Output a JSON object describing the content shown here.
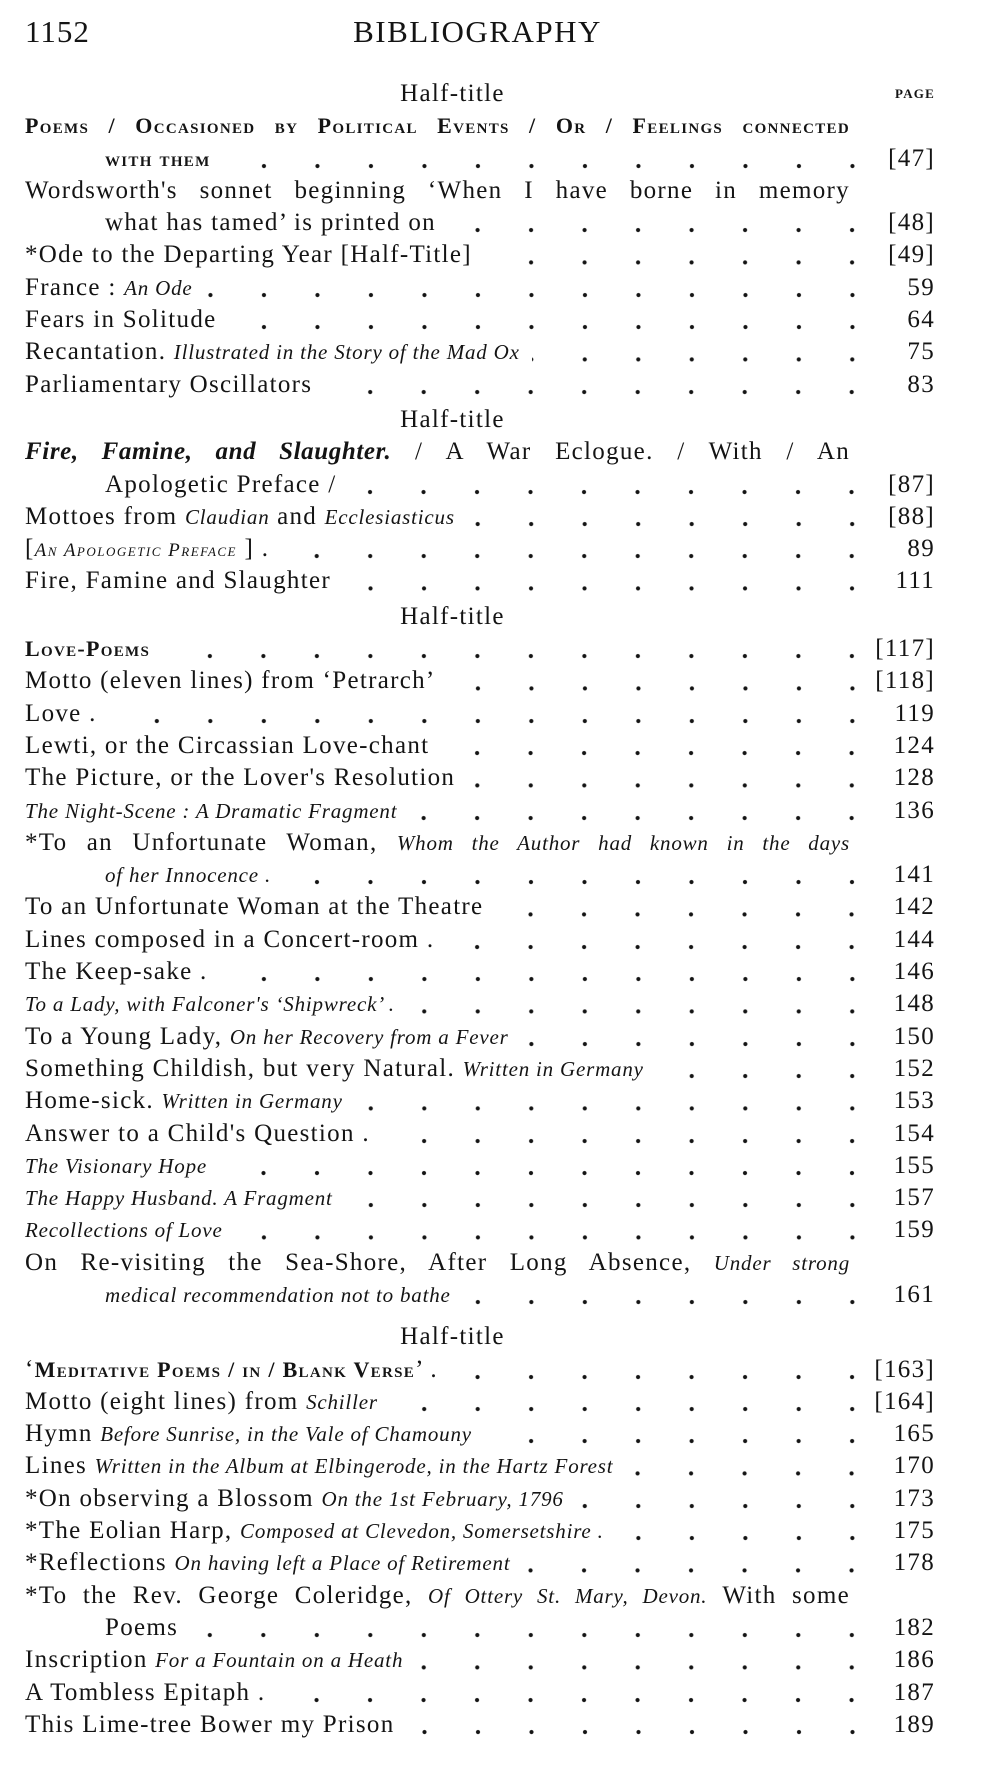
{
  "header": {
    "page_number": "1152",
    "running_title": "BIBLIOGRAPHY"
  },
  "page_column_label": "PAGE",
  "items": [
    {
      "kind": "half",
      "text": "Half-title"
    },
    {
      "kind": "entry",
      "lines": [
        [
          {
            "t": "Poems / Occasioned by Political Events / Or / Feelings connected",
            "s": "sc"
          }
        ],
        [
          {
            "t": "with them",
            "s": "sc"
          }
        ]
      ],
      "page": "[47]"
    },
    {
      "kind": "entry",
      "lines": [
        [
          {
            "t": "Wordsworth's sonnet beginning ‘When I have borne in memory"
          }
        ],
        [
          {
            "t": "what has tamed’ is printed on"
          }
        ]
      ],
      "page": "[48]"
    },
    {
      "kind": "entry",
      "lines": [
        [
          {
            "t": "*Ode to the Departing Year  [Half-Title]"
          }
        ]
      ],
      "page": "[49]"
    },
    {
      "kind": "entry",
      "lines": [
        [
          {
            "t": "France : "
          },
          {
            "t": "An Ode",
            "s": "i"
          }
        ]
      ],
      "page": "59"
    },
    {
      "kind": "entry",
      "lines": [
        [
          {
            "t": "Fears in Solitude"
          }
        ]
      ],
      "page": "64"
    },
    {
      "kind": "entry",
      "lines": [
        [
          {
            "t": "Recantation.  "
          },
          {
            "t": "Illustrated in the Story of the Mad Ox",
            "s": "i"
          }
        ]
      ],
      "page": "75"
    },
    {
      "kind": "entry",
      "lines": [
        [
          {
            "t": "Parliamentary Oscillators"
          }
        ]
      ],
      "page": "83"
    },
    {
      "kind": "half",
      "text": "Half-title"
    },
    {
      "kind": "entry",
      "lines": [
        [
          {
            "t": "Fire, Famine, and Slaughter.",
            "s": "bl"
          },
          {
            "t": " / A War Eclogue. / With / An"
          }
        ],
        [
          {
            "t": "Apologetic Preface /"
          }
        ]
      ],
      "page": "[87]"
    },
    {
      "kind": "entry",
      "lines": [
        [
          {
            "t": "Mottoes from "
          },
          {
            "t": "Claudian",
            "s": "i"
          },
          {
            "t": " and "
          },
          {
            "t": "Ecclesiasticus",
            "s": "i"
          }
        ]
      ],
      "page": "[88]"
    },
    {
      "kind": "entry",
      "lines": [
        [
          {
            "t": "["
          },
          {
            "t": "An Apologetic Preface",
            "s": "isc"
          },
          {
            "t": " ] ."
          }
        ]
      ],
      "page": "89"
    },
    {
      "kind": "entry",
      "lines": [
        [
          {
            "t": "Fire, Famine and Slaughter"
          }
        ]
      ],
      "page": "111"
    },
    {
      "kind": "half",
      "text": "Half-title"
    },
    {
      "kind": "entry",
      "lines": [
        [
          {
            "t": "Love-Poems",
            "s": "sc"
          }
        ]
      ],
      "page": "[117]"
    },
    {
      "kind": "entry",
      "lines": [
        [
          {
            "t": "Motto (eleven lines) from ‘Petrarch’"
          }
        ]
      ],
      "page": "[118]"
    },
    {
      "kind": "entry",
      "lines": [
        [
          {
            "t": "Love ."
          }
        ]
      ],
      "page": "119"
    },
    {
      "kind": "entry",
      "lines": [
        [
          {
            "t": "Lewti, or the Circassian Love-chant"
          }
        ]
      ],
      "page": "124"
    },
    {
      "kind": "entry",
      "lines": [
        [
          {
            "t": "The Picture, or the Lover's Resolution"
          }
        ]
      ],
      "page": "128"
    },
    {
      "kind": "entry",
      "lines": [
        [
          {
            "t": "The Night-Scene :  A Dramatic Fragment",
            "s": "i"
          }
        ]
      ],
      "page": "136"
    },
    {
      "kind": "entry",
      "lines": [
        [
          {
            "t": "*To an Unfortunate Woman, "
          },
          {
            "t": "Whom the Author had known in the days",
            "s": "i"
          }
        ],
        [
          {
            "t": "of her Innocence .",
            "s": "i"
          }
        ]
      ],
      "page": "141"
    },
    {
      "kind": "entry",
      "lines": [
        [
          {
            "t": "To an Unfortunate Woman at the Theatre"
          }
        ]
      ],
      "page": "142"
    },
    {
      "kind": "entry",
      "lines": [
        [
          {
            "t": "Lines composed in a Concert-room ."
          }
        ]
      ],
      "page": "144"
    },
    {
      "kind": "entry",
      "lines": [
        [
          {
            "t": "The Keep-sake ."
          }
        ]
      ],
      "page": "146"
    },
    {
      "kind": "entry",
      "lines": [
        [
          {
            "t": "To a Lady, with Falconer's ‘Shipwreck’ .",
            "s": "i"
          }
        ]
      ],
      "page": "148"
    },
    {
      "kind": "entry",
      "lines": [
        [
          {
            "t": "To a Young Lady, "
          },
          {
            "t": "On her Recovery from a Fever",
            "s": "i"
          }
        ]
      ],
      "page": "150"
    },
    {
      "kind": "entry",
      "lines": [
        [
          {
            "t": "Something Childish, but very Natural.  "
          },
          {
            "t": "Written in Germany",
            "s": "i"
          }
        ]
      ],
      "page": "152"
    },
    {
      "kind": "entry",
      "lines": [
        [
          {
            "t": "Home-sick.  "
          },
          {
            "t": "Written in Germany",
            "s": "i"
          }
        ]
      ],
      "page": "153"
    },
    {
      "kind": "entry",
      "lines": [
        [
          {
            "t": "Answer to a Child's Question ."
          }
        ]
      ],
      "page": "154"
    },
    {
      "kind": "entry",
      "lines": [
        [
          {
            "t": "The Visionary Hope",
            "s": "i"
          }
        ]
      ],
      "page": "155"
    },
    {
      "kind": "entry",
      "lines": [
        [
          {
            "t": "The Happy Husband.   A Fragment",
            "s": "i"
          }
        ]
      ],
      "page": "157"
    },
    {
      "kind": "entry",
      "lines": [
        [
          {
            "t": "Recollections of Love",
            "s": "i"
          }
        ]
      ],
      "page": "159"
    },
    {
      "kind": "entry",
      "lines": [
        [
          {
            "t": "On Re-visiting the Sea-Shore, After Long Absence, "
          },
          {
            "t": "Under strong",
            "s": "i"
          }
        ],
        [
          {
            "t": "medical recommendation not to bathe",
            "s": "i"
          }
        ]
      ],
      "page": "161"
    },
    {
      "kind": "half",
      "text": "Half-title"
    },
    {
      "kind": "entry",
      "lines": [
        [
          {
            "t": "‘"
          },
          {
            "t": "Meditative Poems / in / Blank Verse",
            "s": "sc"
          },
          {
            "t": "’ ."
          }
        ]
      ],
      "page": "[163]"
    },
    {
      "kind": "entry",
      "lines": [
        [
          {
            "t": "Motto (eight lines) from "
          },
          {
            "t": "Schiller",
            "s": "i"
          }
        ]
      ],
      "page": "[164]"
    },
    {
      "kind": "entry",
      "lines": [
        [
          {
            "t": "Hymn "
          },
          {
            "t": "Before Sunrise, in the Vale of Chamouny",
            "s": "i"
          }
        ]
      ],
      "page": "165"
    },
    {
      "kind": "entry",
      "lines": [
        [
          {
            "t": "Lines "
          },
          {
            "t": "Written in the Album at Elbingerode, in the Hartz Forest",
            "s": "i"
          }
        ]
      ],
      "page": "170"
    },
    {
      "kind": "entry",
      "lines": [
        [
          {
            "t": "*On observing a Blossom "
          },
          {
            "t": "On the 1st February, 1796",
            "s": "i"
          }
        ]
      ],
      "page": "173"
    },
    {
      "kind": "entry",
      "lines": [
        [
          {
            "t": "*The Eolian Harp, "
          },
          {
            "t": "Composed at Clevedon, Somersetshire .",
            "s": "i"
          }
        ]
      ],
      "page": "175"
    },
    {
      "kind": "entry",
      "lines": [
        [
          {
            "t": "*Reflections "
          },
          {
            "t": "On having left a Place of Retirement",
            "s": "i"
          }
        ]
      ],
      "page": "178"
    },
    {
      "kind": "entry",
      "lines": [
        [
          {
            "t": "*To the Rev. George Coleridge, "
          },
          {
            "t": "Of Ottery St. Mary, Devon.",
            "s": "i"
          },
          {
            "t": "  With some"
          }
        ],
        [
          {
            "t": "Poems"
          }
        ]
      ],
      "page": "182"
    },
    {
      "kind": "entry",
      "lines": [
        [
          {
            "t": "Inscription "
          },
          {
            "t": "For a Fountain on a Heath",
            "s": "i"
          }
        ]
      ],
      "page": "186"
    },
    {
      "kind": "entry",
      "lines": [
        [
          {
            "t": "A Tombless Epitaph ."
          }
        ]
      ],
      "page": "187"
    },
    {
      "kind": "entry",
      "lines": [
        [
          {
            "t": "This Lime-tree Bower my Prison"
          }
        ]
      ],
      "page": "189"
    }
  ]
}
